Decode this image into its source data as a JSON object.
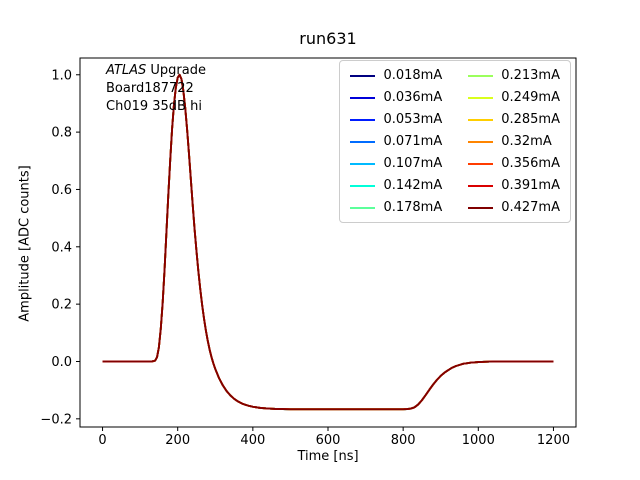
{
  "figure": {
    "background": "#ffffff",
    "axes_edge_color": "#000000",
    "legend_border_color": "#cccccc"
  },
  "chart_data": {
    "type": "line",
    "title": "run631",
    "xlabel": "Time [ns]",
    "ylabel": "Amplitude [ADC counts]",
    "xlim": [
      -60,
      1260
    ],
    "ylim": [
      -0.2285,
      1.0585
    ],
    "xticks": [
      0,
      200,
      400,
      600,
      800,
      1000,
      1200
    ],
    "yticks": [
      -0.2,
      0.0,
      0.2,
      0.4,
      0.6,
      0.8,
      1.0
    ],
    "grid": false,
    "legend_position": "upper right",
    "legend_columns": 2,
    "annotation": {
      "line1_italic": "ATLAS",
      "line1_rest": " Upgrade",
      "line2": "Board187722",
      "line3": "Ch019 35dB hi"
    },
    "series_overlap": true,
    "series": [
      {
        "label": "0.018mA",
        "color": "#000080"
      },
      {
        "label": "0.036mA",
        "color": "#0000d9"
      },
      {
        "label": "0.053mA",
        "color": "#001dff"
      },
      {
        "label": "0.071mA",
        "color": "#006cff"
      },
      {
        "label": "0.107mA",
        "color": "#00baff"
      },
      {
        "label": "0.142mA",
        "color": "#00ffda"
      },
      {
        "label": "0.178mA",
        "color": "#5cff9b"
      },
      {
        "label": "0.213mA",
        "color": "#9bff5c"
      },
      {
        "label": "0.249mA",
        "color": "#daff1c"
      },
      {
        "label": "0.285mA",
        "color": "#ffce00"
      },
      {
        "label": "0.32mA",
        "color": "#ff8500"
      },
      {
        "label": "0.356mA",
        "color": "#ff3c00"
      },
      {
        "label": "0.391mA",
        "color": "#d90000"
      },
      {
        "label": "0.427mA",
        "color": "#800000"
      }
    ],
    "shared_pulse": {
      "x": [
        0,
        20,
        40,
        60,
        80,
        100,
        120,
        130,
        135,
        140,
        145,
        150,
        155,
        160,
        165,
        170,
        175,
        180,
        185,
        190,
        195,
        200,
        205,
        210,
        215,
        220,
        225,
        230,
        235,
        240,
        245,
        250,
        255,
        260,
        265,
        270,
        275,
        280,
        285,
        290,
        295,
        300,
        310,
        320,
        330,
        340,
        350,
        360,
        370,
        380,
        390,
        400,
        420,
        440,
        460,
        480,
        500,
        550,
        600,
        650,
        700,
        750,
        800,
        810,
        820,
        830,
        840,
        850,
        860,
        870,
        880,
        890,
        900,
        910,
        920,
        930,
        940,
        950,
        960,
        970,
        980,
        990,
        1000,
        1020,
        1040,
        1060,
        1080,
        1100,
        1150,
        1200
      ],
      "y": [
        0,
        0,
        0,
        0,
        0,
        0,
        0,
        0,
        0.001,
        0.003,
        0.015,
        0.05,
        0.115,
        0.205,
        0.32,
        0.45,
        0.58,
        0.7,
        0.81,
        0.895,
        0.955,
        0.99,
        1.0,
        0.985,
        0.945,
        0.885,
        0.81,
        0.725,
        0.635,
        0.545,
        0.46,
        0.385,
        0.315,
        0.253,
        0.198,
        0.15,
        0.108,
        0.072,
        0.041,
        0.015,
        -0.007,
        -0.026,
        -0.058,
        -0.083,
        -0.103,
        -0.118,
        -0.13,
        -0.139,
        -0.146,
        -0.151,
        -0.155,
        -0.158,
        -0.162,
        -0.164,
        -0.1655,
        -0.166,
        -0.1665,
        -0.1665,
        -0.1665,
        -0.1665,
        -0.1665,
        -0.1665,
        -0.1665,
        -0.166,
        -0.1645,
        -0.16,
        -0.15,
        -0.135,
        -0.117,
        -0.098,
        -0.08,
        -0.064,
        -0.05,
        -0.039,
        -0.03,
        -0.022,
        -0.016,
        -0.012,
        -0.008,
        -0.006,
        -0.004,
        -0.003,
        -0.002,
        -0.001,
        0,
        0,
        0,
        0,
        0,
        0
      ]
    }
  }
}
